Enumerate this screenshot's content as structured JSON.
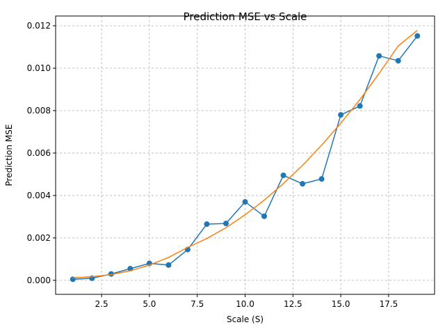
{
  "chart_data": {
    "type": "line",
    "title": "Prediction MSE vs Scale",
    "xlabel": "Scale (S)",
    "ylabel": "Prediction MSE",
    "xlim": [
      0.1,
      19.9
    ],
    "ylim": [
      -0.00066,
      0.01246
    ],
    "xticks": [
      2.5,
      5.0,
      7.5,
      10.0,
      12.5,
      15.0,
      17.5
    ],
    "xtick_labels": [
      "2.5",
      "5.0",
      "7.5",
      "10.0",
      "12.5",
      "15.0",
      "17.5"
    ],
    "yticks": [
      0.0,
      0.002,
      0.004,
      0.006,
      0.008,
      0.01,
      0.012
    ],
    "ytick_labels": [
      "0.000",
      "0.002",
      "0.004",
      "0.006",
      "0.008",
      "0.010",
      "0.012"
    ],
    "grid": true,
    "series": [
      {
        "color": "#1f77b4",
        "marker": "circle",
        "x": [
          1,
          2,
          3,
          4,
          5,
          6,
          7,
          8,
          9,
          10,
          11,
          12,
          13,
          14,
          15,
          16,
          17,
          18,
          19
        ],
        "y": [
          5e-05,
          0.0001,
          0.0003,
          0.00055,
          0.0008,
          0.00072,
          0.00145,
          0.00265,
          0.00268,
          0.0037,
          0.00302,
          0.00495,
          0.00455,
          0.00478,
          0.0078,
          0.00822,
          0.01058,
          0.01035,
          0.01152
        ]
      },
      {
        "color": "#ff7f0e",
        "marker": "none",
        "x": [
          1,
          2,
          3,
          4,
          5,
          6,
          7,
          8,
          9,
          10,
          11,
          12,
          13,
          14,
          15,
          16,
          17,
          18,
          19
        ],
        "y": [
          0.00012,
          0.00017,
          0.00027,
          0.00045,
          0.00072,
          0.00108,
          0.00155,
          0.00197,
          0.00248,
          0.00309,
          0.00378,
          0.00456,
          0.00542,
          0.00637,
          0.00741,
          0.00852,
          0.00975,
          0.01105,
          0.01178
        ]
      }
    ]
  }
}
